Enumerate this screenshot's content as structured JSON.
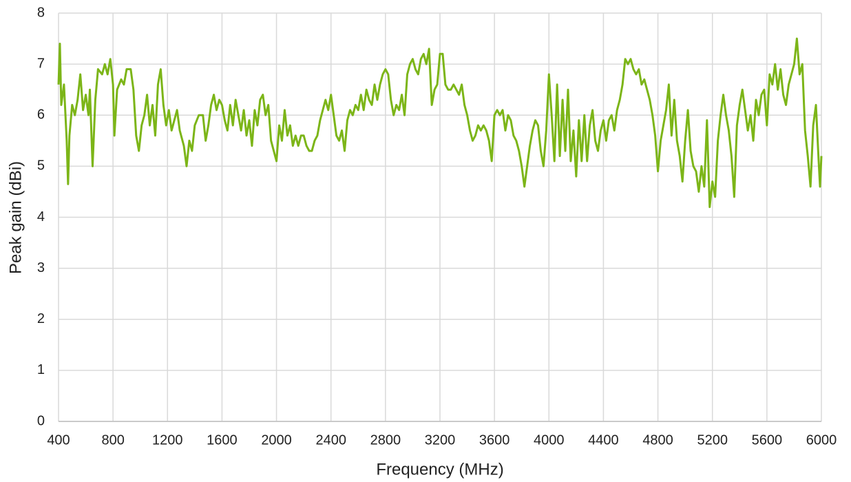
{
  "chart_data": {
    "type": "line",
    "x_label": "Frequency (MHz)",
    "y_label": "Peak gain (dBi)",
    "color": "#7cb518",
    "grid": true,
    "xlim": [
      400,
      6000
    ],
    "ylim": [
      0,
      8
    ],
    "xticks": [
      400,
      800,
      1200,
      1600,
      2000,
      2400,
      2800,
      3200,
      3600,
      4000,
      4400,
      4800,
      5200,
      5600,
      6000
    ],
    "yticks": [
      0,
      1,
      2,
      3,
      4,
      5,
      6,
      7,
      8
    ],
    "x": [
      400,
      410,
      420,
      440,
      460,
      470,
      480,
      500,
      520,
      540,
      560,
      580,
      600,
      620,
      630,
      650,
      670,
      690,
      720,
      740,
      760,
      780,
      800,
      810,
      830,
      860,
      880,
      900,
      930,
      950,
      970,
      990,
      1010,
      1030,
      1050,
      1070,
      1090,
      1110,
      1130,
      1150,
      1170,
      1190,
      1210,
      1230,
      1250,
      1270,
      1290,
      1320,
      1340,
      1360,
      1380,
      1400,
      1430,
      1460,
      1480,
      1500,
      1520,
      1540,
      1560,
      1580,
      1600,
      1620,
      1640,
      1660,
      1680,
      1700,
      1720,
      1740,
      1760,
      1780,
      1800,
      1820,
      1840,
      1860,
      1880,
      1900,
      1920,
      1940,
      1960,
      1980,
      2000,
      2020,
      2040,
      2060,
      2080,
      2100,
      2120,
      2140,
      2160,
      2180,
      2200,
      2220,
      2240,
      2260,
      2280,
      2300,
      2320,
      2340,
      2360,
      2380,
      2400,
      2420,
      2440,
      2460,
      2480,
      2500,
      2520,
      2540,
      2560,
      2580,
      2600,
      2620,
      2640,
      2660,
      2680,
      2700,
      2720,
      2740,
      2760,
      2780,
      2800,
      2820,
      2840,
      2860,
      2880,
      2900,
      2920,
      2940,
      2960,
      2980,
      3000,
      3020,
      3040,
      3060,
      3080,
      3100,
      3120,
      3140,
      3160,
      3180,
      3200,
      3220,
      3240,
      3260,
      3280,
      3300,
      3320,
      3340,
      3360,
      3380,
      3400,
      3420,
      3440,
      3460,
      3480,
      3500,
      3520,
      3540,
      3560,
      3580,
      3600,
      3620,
      3640,
      3660,
      3680,
      3700,
      3720,
      3740,
      3760,
      3780,
      3800,
      3820,
      3840,
      3860,
      3880,
      3900,
      3920,
      3940,
      3960,
      3980,
      4000,
      4020,
      4040,
      4060,
      4080,
      4100,
      4120,
      4140,
      4160,
      4180,
      4200,
      4220,
      4240,
      4260,
      4280,
      4300,
      4320,
      4340,
      4360,
      4380,
      4400,
      4420,
      4440,
      4460,
      4480,
      4500,
      4520,
      4540,
      4560,
      4580,
      4600,
      4620,
      4640,
      4660,
      4680,
      4700,
      4720,
      4740,
      4760,
      4780,
      4800,
      4820,
      4840,
      4860,
      4880,
      4900,
      4920,
      4940,
      4960,
      4980,
      5000,
      5020,
      5040,
      5060,
      5080,
      5100,
      5120,
      5140,
      5160,
      5180,
      5200,
      5220,
      5240,
      5260,
      5280,
      5300,
      5320,
      5340,
      5360,
      5380,
      5400,
      5420,
      5440,
      5460,
      5480,
      5500,
      5520,
      5540,
      5560,
      5580,
      5600,
      5620,
      5640,
      5660,
      5680,
      5700,
      5720,
      5740,
      5760,
      5780,
      5800,
      5820,
      5840,
      5860,
      5880,
      5900,
      5920,
      5940,
      5960,
      5980,
      5990,
      6000
    ],
    "values": [
      6.6,
      7.4,
      6.2,
      6.6,
      5.5,
      4.65,
      5.6,
      6.2,
      6.0,
      6.3,
      6.8,
      6.1,
      6.4,
      6.0,
      6.5,
      5.0,
      6.3,
      6.9,
      6.8,
      7.0,
      6.8,
      7.1,
      6.6,
      5.6,
      6.5,
      6.7,
      6.6,
      6.9,
      6.9,
      6.5,
      5.6,
      5.3,
      5.8,
      6.0,
      6.4,
      5.8,
      6.2,
      5.6,
      6.6,
      6.9,
      6.2,
      5.8,
      6.1,
      5.7,
      5.9,
      6.1,
      5.7,
      5.4,
      5.0,
      5.5,
      5.3,
      5.8,
      6.0,
      6.0,
      5.5,
      5.8,
      6.2,
      6.4,
      6.1,
      6.3,
      6.2,
      5.9,
      5.7,
      6.2,
      5.8,
      6.3,
      6.0,
      5.7,
      6.1,
      5.6,
      5.9,
      5.4,
      6.1,
      5.8,
      6.3,
      6.4,
      6.0,
      6.2,
      5.5,
      5.3,
      5.1,
      5.8,
      5.5,
      6.1,
      5.6,
      5.8,
      5.4,
      5.6,
      5.4,
      5.6,
      5.6,
      5.4,
      5.3,
      5.3,
      5.5,
      5.6,
      5.9,
      6.1,
      6.3,
      6.1,
      6.4,
      6.0,
      5.6,
      5.5,
      5.7,
      5.3,
      5.9,
      6.1,
      6.0,
      6.2,
      6.1,
      6.4,
      6.1,
      6.5,
      6.3,
      6.2,
      6.6,
      6.3,
      6.6,
      6.8,
      6.9,
      6.8,
      6.3,
      6.0,
      6.2,
      6.1,
      6.4,
      6.0,
      6.8,
      7.0,
      7.1,
      6.9,
      6.8,
      7.1,
      7.2,
      7.0,
      7.3,
      6.2,
      6.5,
      6.6,
      7.2,
      7.2,
      6.6,
      6.5,
      6.5,
      6.6,
      6.5,
      6.4,
      6.6,
      6.2,
      6.0,
      5.7,
      5.5,
      5.6,
      5.8,
      5.7,
      5.8,
      5.7,
      5.5,
      5.1,
      6.0,
      6.1,
      6.0,
      6.1,
      5.7,
      6.0,
      5.9,
      5.6,
      5.5,
      5.3,
      5.0,
      4.6,
      5.0,
      5.4,
      5.7,
      5.9,
      5.8,
      5.3,
      5.0,
      5.7,
      6.8,
      6.0,
      5.1,
      6.6,
      5.2,
      6.3,
      5.3,
      6.5,
      5.1,
      5.7,
      4.8,
      5.9,
      5.1,
      6.0,
      5.1,
      5.8,
      6.1,
      5.5,
      5.3,
      5.7,
      5.9,
      5.5,
      5.9,
      6.0,
      5.7,
      6.1,
      6.3,
      6.6,
      7.1,
      7.0,
      7.1,
      6.9,
      6.8,
      6.9,
      6.6,
      6.7,
      6.5,
      6.3,
      6.0,
      5.6,
      4.9,
      5.5,
      5.8,
      6.1,
      6.6,
      5.6,
      6.3,
      5.5,
      5.2,
      4.7,
      5.5,
      6.1,
      5.3,
      5.0,
      4.9,
      4.5,
      5.0,
      4.6,
      5.9,
      4.2,
      4.7,
      4.4,
      5.5,
      6.0,
      6.4,
      6.0,
      5.7,
      5.2,
      4.4,
      5.8,
      6.2,
      6.5,
      6.1,
      5.7,
      6.0,
      5.5,
      6.3,
      6.0,
      6.4,
      6.5,
      5.8,
      6.8,
      6.6,
      7.0,
      6.5,
      6.9,
      6.4,
      6.2,
      6.6,
      6.8,
      7.0,
      7.5,
      6.8,
      7.0,
      5.7,
      5.2,
      4.6,
      5.8,
      6.2,
      5.1,
      4.6,
      5.2
    ]
  }
}
